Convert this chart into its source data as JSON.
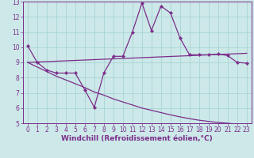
{
  "xlabel": "Windchill (Refroidissement éolien,°C)",
  "background_color": "#cce8e8",
  "line_color": "#7b2d8b",
  "xlim": [
    -0.5,
    23.5
  ],
  "ylim": [
    5,
    13
  ],
  "xticks": [
    0,
    1,
    2,
    3,
    4,
    5,
    6,
    7,
    8,
    9,
    10,
    11,
    12,
    13,
    14,
    15,
    16,
    17,
    18,
    19,
    20,
    21,
    22,
    23
  ],
  "yticks": [
    5,
    6,
    7,
    8,
    9,
    10,
    11,
    12,
    13
  ],
  "curve1_x": [
    0,
    1,
    2,
    3,
    4,
    5,
    6,
    7,
    8,
    9,
    10,
    11,
    12,
    13,
    14,
    15,
    16,
    17,
    18,
    19,
    20,
    21,
    22,
    23
  ],
  "curve1_y": [
    10.1,
    9.0,
    8.5,
    8.3,
    8.3,
    8.3,
    7.2,
    6.05,
    8.3,
    9.4,
    9.4,
    11.0,
    12.9,
    11.1,
    12.7,
    12.25,
    10.6,
    9.5,
    9.5,
    9.5,
    9.55,
    9.45,
    9.0,
    8.95
  ],
  "curve2_x": [
    0,
    23
  ],
  "curve2_y": [
    9.0,
    9.6
  ],
  "curve3_x": [
    0,
    1,
    2,
    3,
    4,
    5,
    6,
    7,
    8,
    9,
    10,
    11,
    12,
    13,
    14,
    15,
    16,
    17,
    18,
    19,
    20,
    21,
    22,
    23
  ],
  "curve3_y": [
    9.0,
    8.7,
    8.4,
    8.1,
    7.85,
    7.6,
    7.35,
    7.05,
    6.85,
    6.6,
    6.4,
    6.2,
    6.0,
    5.85,
    5.7,
    5.55,
    5.42,
    5.3,
    5.2,
    5.12,
    5.05,
    5.0,
    4.94,
    4.9
  ],
  "grid_color": "#aad4d4",
  "tick_fontsize": 5.5,
  "xlabel_fontsize": 6.5,
  "lw": 0.9
}
